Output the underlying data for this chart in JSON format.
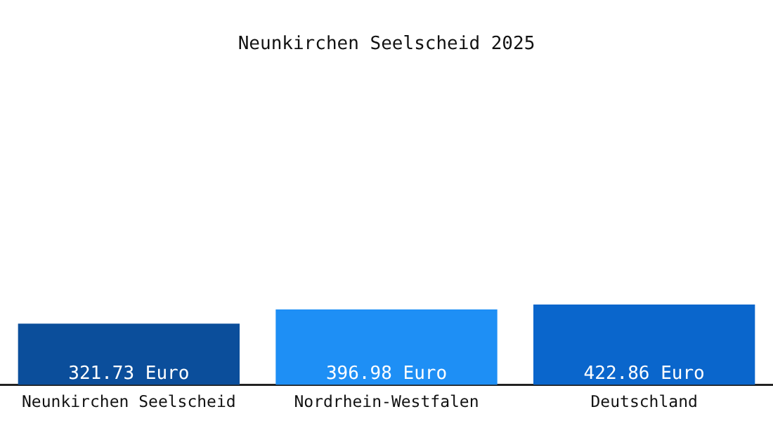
{
  "chart_data": {
    "type": "bar",
    "title": "Neunkirchen Seelscheid 2025",
    "categories": [
      "Neunkirchen Seelscheid",
      "Nordrhein-Westfalen",
      "Deutschland"
    ],
    "values": [
      321.73,
      396.98,
      422.86
    ],
    "colors": [
      "#0b4e9b",
      "#1e8ff5",
      "#0a66cc"
    ],
    "value_labels": [
      "321.73 Euro",
      "396.98 Euro",
      "422.86 Euro"
    ],
    "grid": false,
    "legend": false
  }
}
